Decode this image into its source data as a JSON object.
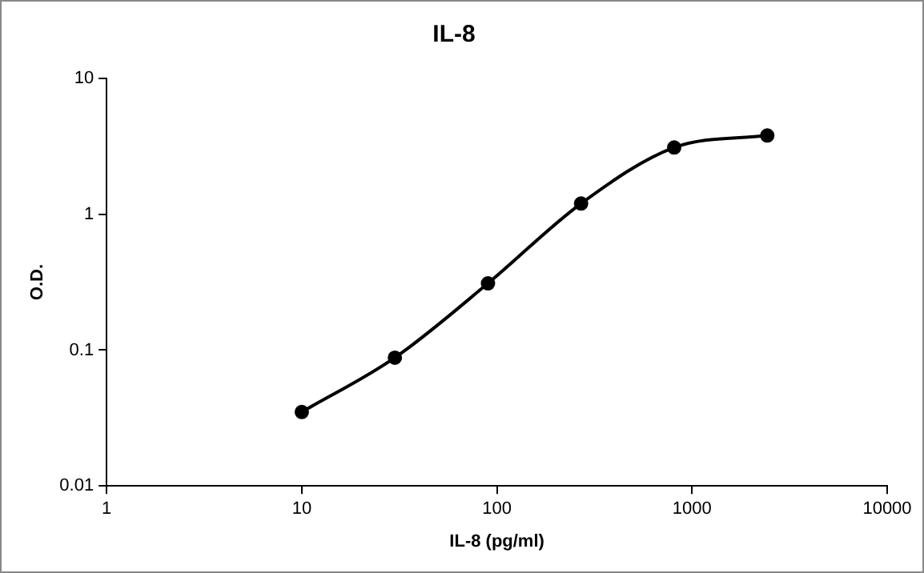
{
  "chart_data": {
    "type": "line",
    "title": "IL-8",
    "xlabel": "IL-8 (pg/ml)",
    "ylabel": "O.D.",
    "x": [
      10,
      30,
      90,
      270,
      810,
      2430
    ],
    "series": [
      {
        "color": "#000000",
        "values": [
          0.035,
          0.088,
          0.31,
          1.2,
          3.1,
          3.8
        ]
      }
    ],
    "log": "xy",
    "xlim": [
      1,
      10000
    ],
    "xticks": [
      1,
      10,
      100,
      1000,
      10000
    ],
    "ylim": [
      0.01,
      10
    ],
    "yticks": [
      0.01,
      0.1,
      1,
      10
    ],
    "grid": false,
    "legend": false,
    "marker": "circle",
    "line_style": "solid"
  }
}
